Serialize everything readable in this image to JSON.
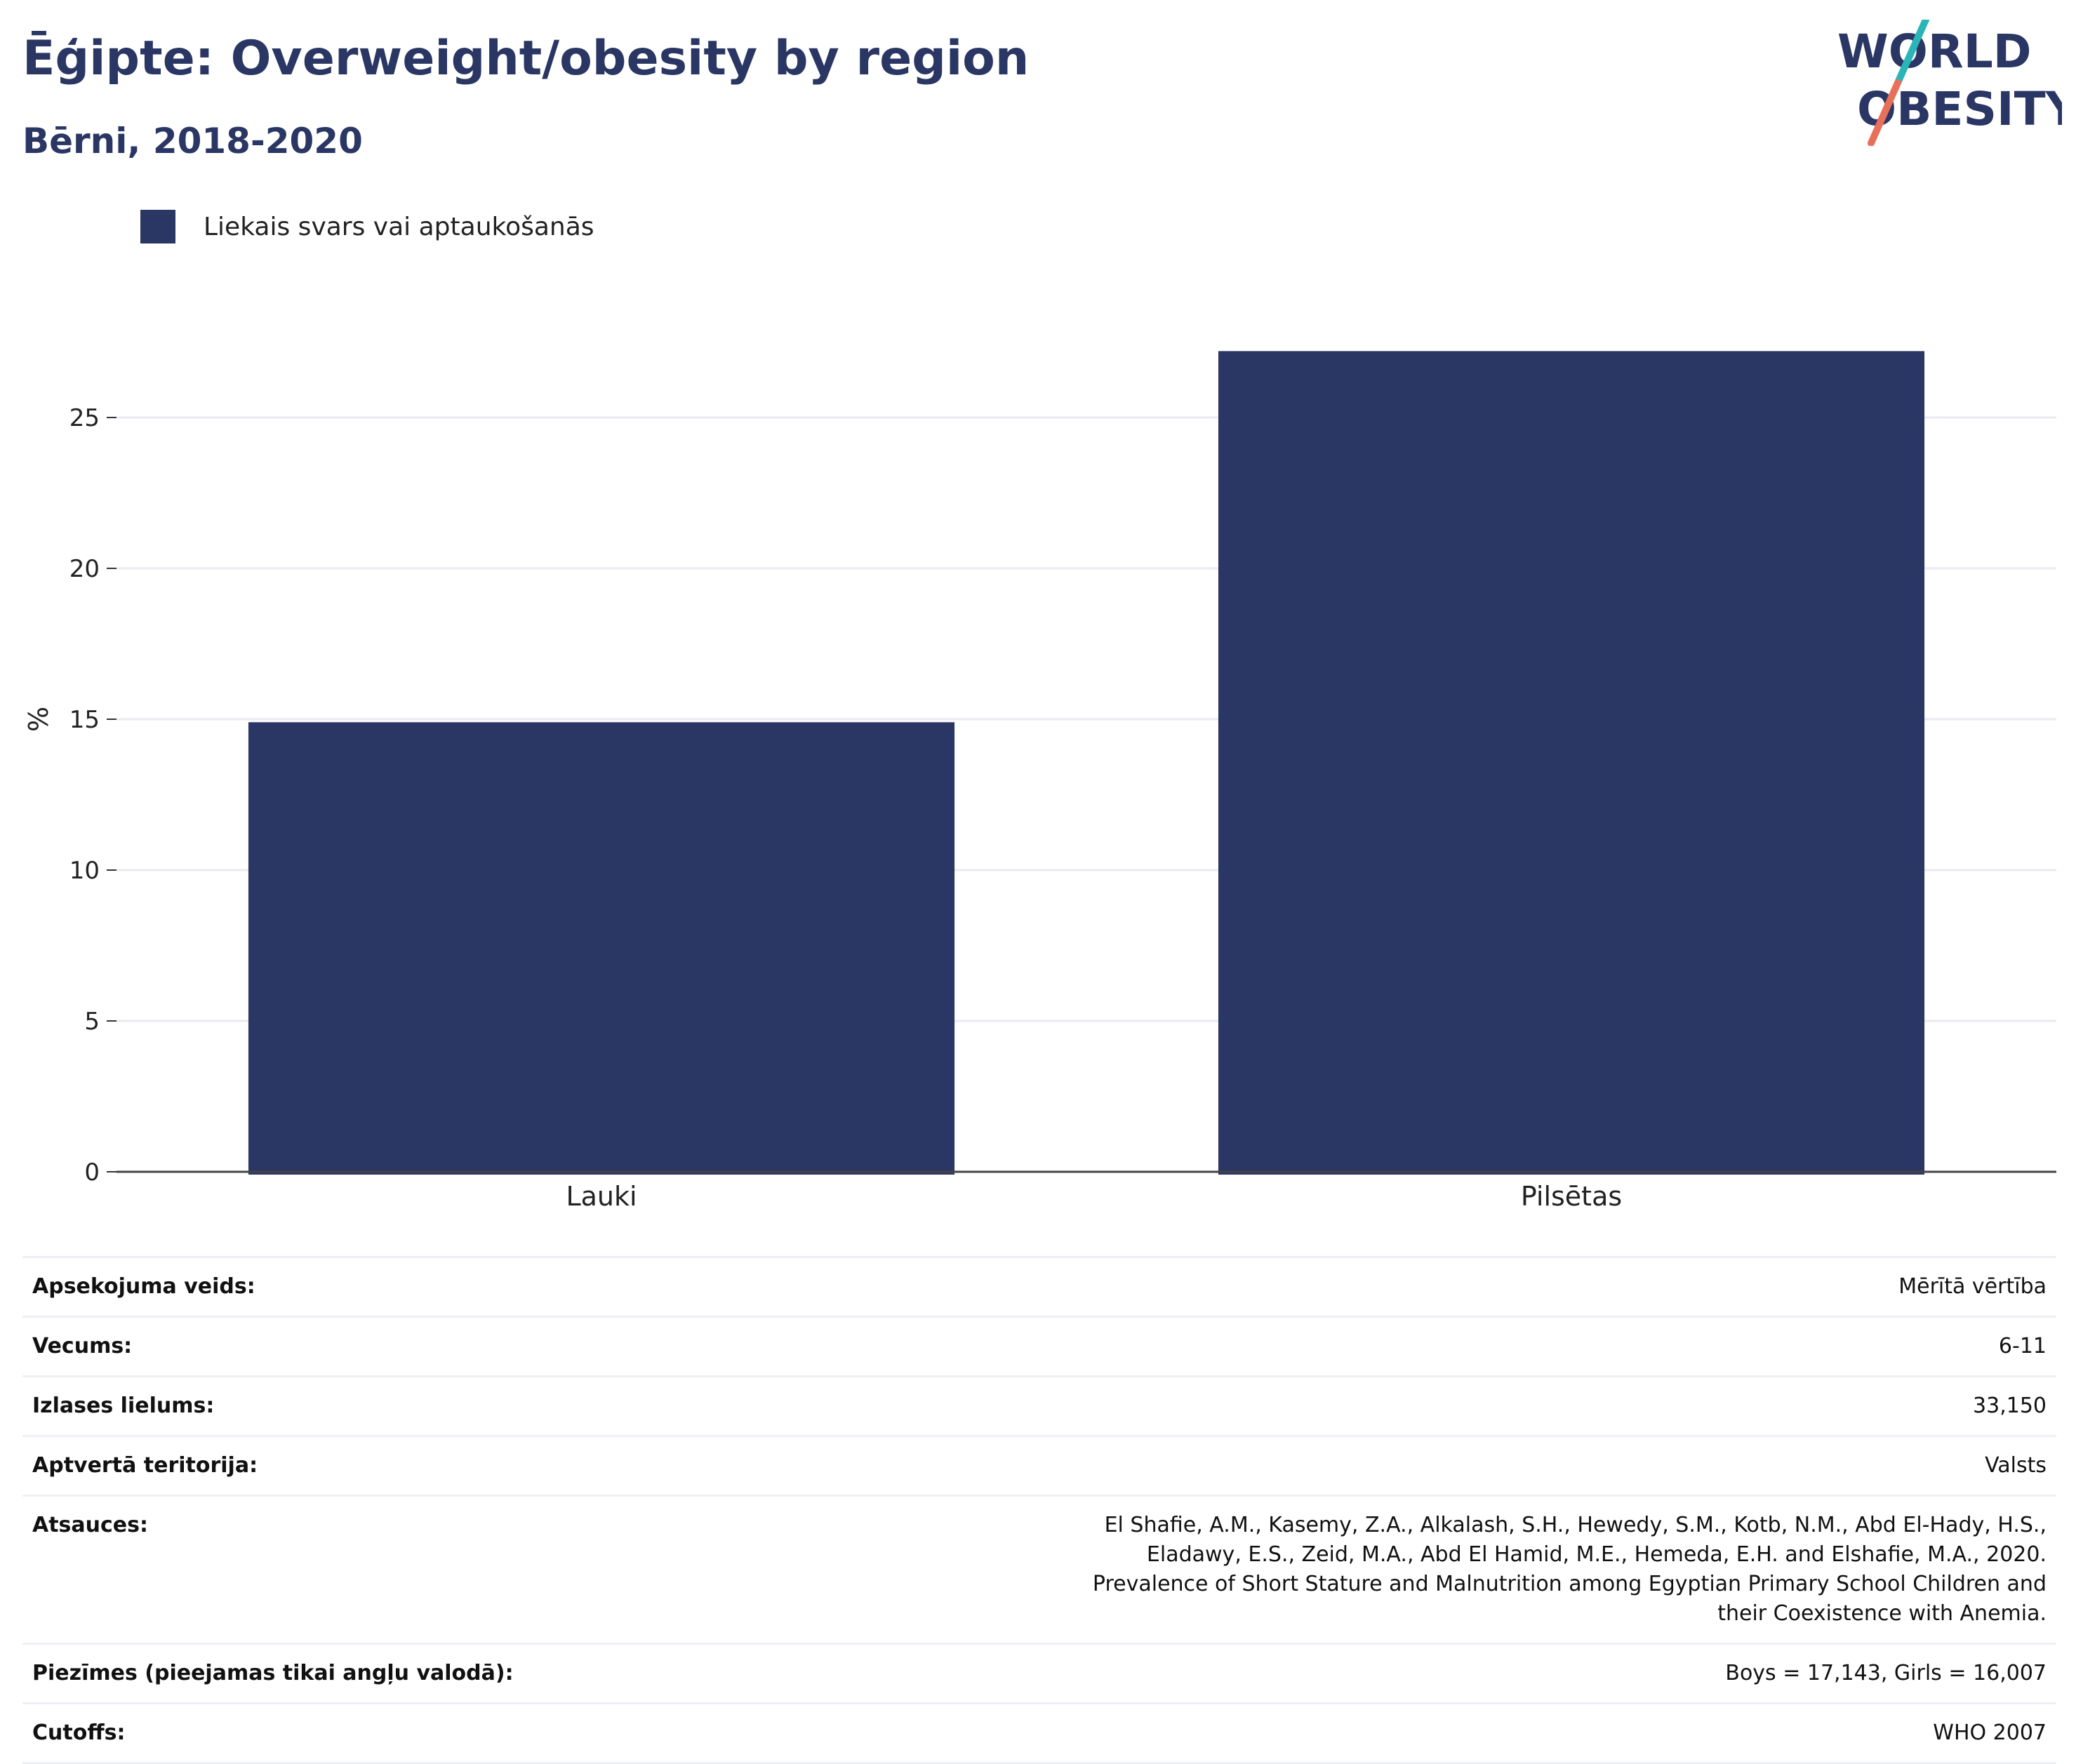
{
  "header": {
    "title": "Ēģipte: Overweight/obesity by region",
    "subtitle": "Bērni, 2018-2020"
  },
  "logo": {
    "line1": "WORLD",
    "line2": "OBESITY",
    "colors": {
      "text": "#2a3663",
      "slash_top": "#2bb5b8",
      "slash_bottom": "#e8705b"
    }
  },
  "legend": {
    "items": [
      {
        "label": "Liekais svars vai aptaukošanās",
        "color": "#2a3663"
      }
    ]
  },
  "chart_data": {
    "type": "bar",
    "categories": [
      "Lauki",
      "Pilsētas"
    ],
    "series": [
      {
        "name": "Liekais svars vai aptaukošanās",
        "values": [
          14.9,
          27.2
        ],
        "color": "#2a3663"
      }
    ],
    "ylabel": "%",
    "ylim": [
      0,
      30
    ],
    "yticks": [
      0,
      5,
      10,
      15,
      20,
      25
    ],
    "grid": true,
    "legend_position": "top-left"
  },
  "info_table": {
    "rows": [
      {
        "key": "Apsekojuma veids:",
        "value": "Mērītā vērtība"
      },
      {
        "key": "Vecums:",
        "value": "6-11"
      },
      {
        "key": "Izlases lielums:",
        "value": "33,150"
      },
      {
        "key": "Aptvertā teritorija:",
        "value": "Valsts"
      },
      {
        "key": "Atsauces:",
        "value": "El Shafie, A.M., Kasemy, Z.A., Alkalash, S.H., Hewedy, S.M., Kotb, N.M., Abd El-Hady, H.S., Eladawy, E.S., Zeid, M.A., Abd El Hamid, M.E., Hemeda, E.H. and Elshafie, M.A., 2020. Prevalence of Short Stature and Malnutrition among Egyptian Primary School Children and their Coexistence with Anemia."
      },
      {
        "key": "Piezīmes (pieejamas tikai angļu valodā):",
        "value": "Boys = 17,143, Girls = 16,007"
      },
      {
        "key": "Cutoffs:",
        "value": "WHO 2007"
      }
    ]
  }
}
